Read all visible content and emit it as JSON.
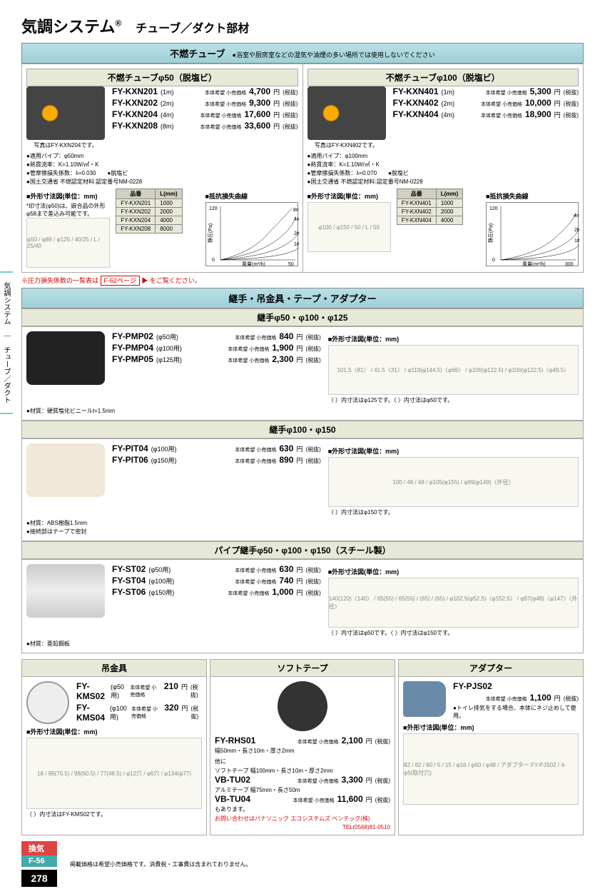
{
  "header": {
    "title": "気調システム",
    "reg": "®",
    "subtitle": "チューブ／ダクト部材"
  },
  "sidebar": {
    "text": "気調システム　｜　チューブ／ダクト部材　｜"
  },
  "section1": {
    "title": "不燃チューブ",
    "warning": "●浴室や厨房室などの湿気や油煙の多い場所では使用しないでください",
    "left": {
      "subtitle": "不燃チューブφ50（脱塩ビ）",
      "caption": "写真はFY-KXN204です。",
      "products": [
        {
          "model": "FY-KXN201",
          "spec": "(1m)",
          "price": "4,700"
        },
        {
          "model": "FY-KXN202",
          "spec": "(2m)",
          "price": "9,300"
        },
        {
          "model": "FY-KXN204",
          "spec": "(4m)",
          "price": "17,600"
        },
        {
          "model": "FY-KXN208",
          "spec": "(8m)",
          "price": "33,600"
        }
      ],
      "bullets": [
        "●適用パイプ：φ50mm",
        "●熱貫流率：K=1.10W/㎡・K",
        "●管摩擦損失係数：λ=0.030　　●脱塩ビ",
        "●国土交通省 不燃認定材料:認定番号NM-0228"
      ],
      "diagram_label": "外形寸法図(単位：mm)",
      "diagram_note": "*印寸法(φ50)は、嵌合品の外形φ58まで差込み可能です。",
      "table": {
        "headers": [
          "品番",
          "L(mm)"
        ],
        "rows": [
          [
            "FY-KXN201",
            "1000"
          ],
          [
            "FY-KXN202",
            "2000"
          ],
          [
            "FY-KXN204",
            "4000"
          ],
          [
            "FY-KXN208",
            "8000"
          ]
        ]
      },
      "chart_label": "抵抗損失曲線",
      "chart": {
        "xlabel": "風量(m³/h)",
        "ylabel": "静圧(Pa)",
        "xlim": [
          0,
          50
        ],
        "ylim": [
          0,
          120
        ],
        "series": [
          "8m",
          "4m",
          "2m",
          "1m"
        ]
      }
    },
    "right": {
      "subtitle": "不燃チューブφ100（脱塩ビ）",
      "caption": "写真はFY-KXN402です。",
      "products": [
        {
          "model": "FY-KXN401",
          "spec": "(1m)",
          "price": "5,300"
        },
        {
          "model": "FY-KXN402",
          "spec": "(2m)",
          "price": "10,000"
        },
        {
          "model": "FY-KXN404",
          "spec": "(4m)",
          "price": "18,900"
        }
      ],
      "bullets": [
        "●適用パイプ：φ100mm",
        "●熱貫流率：K=1.10W/㎡・K",
        "●管摩擦損失係数：λ=0.070　　●脱塩ビ",
        "●国土交通省 不燃認定材料:認定番号NM-0228"
      ],
      "diagram_label": "外形寸法図(単位：mm)",
      "table": {
        "headers": [
          "品番",
          "L(mm)"
        ],
        "rows": [
          [
            "FY-KXN401",
            "1000"
          ],
          [
            "FY-KXN402",
            "2000"
          ],
          [
            "FY-KXN404",
            "4000"
          ]
        ]
      },
      "chart_label": "抵抗損失曲線",
      "chart": {
        "xlabel": "風量(m³/h)",
        "ylabel": "静圧(Pa)",
        "xlim": [
          0,
          300
        ],
        "ylim": [
          0,
          120
        ],
        "series": [
          "4m",
          "2m",
          "1m"
        ]
      }
    }
  },
  "note_loss": {
    "prefix": "※圧力損失係数の一覧表は",
    "box": "F-62ページ",
    "suffix": "をご覧ください。"
  },
  "section2": {
    "title": "継手・吊金具・テープ・アダプター",
    "sub1": {
      "title": "継手φ50・φ100・φ125",
      "products": [
        {
          "model": "FY-PMP02",
          "spec": "(φ50用)",
          "price": "840"
        },
        {
          "model": "FY-PMP04",
          "spec": "(φ100用)",
          "price": "1,900"
        },
        {
          "model": "FY-PMP05",
          "spec": "(φ125用)",
          "price": "2,300"
        }
      ],
      "bullet": "●材質：硬質塩化ビニールt=1.5mm",
      "diagram_label": "外形寸法図(単位：mm)",
      "dims": "101.5〈81〉 / 41.5〈31〉 / φ119(φ144.5)〈φ66〉 / φ100(φ122.5) / φ100(φ122.5)〈φ49.5〉",
      "notes": [
        "（ ）内寸法はφ125です。〈 〉内寸法はφ50です。"
      ]
    },
    "sub2": {
      "title": "継手φ100・φ150",
      "products": [
        {
          "model": "FY-PIT04",
          "spec": "(φ100用)",
          "price": "630"
        },
        {
          "model": "FY-PIT06",
          "spec": "(φ150用)",
          "price": "890"
        }
      ],
      "bullets": [
        "●材質：ABS樹脂1.5mm",
        "●接続部はテープで密封"
      ],
      "diagram_label": "外形寸法図(単位：mm)",
      "dims": "100 / 48 / 48 / φ105(φ155) / φ99(φ149)〈外径〉",
      "note": "（ ）内寸法はφ150です。"
    },
    "sub3": {
      "title": "パイプ継手φ50・φ100・φ150（スチール製）",
      "products": [
        {
          "model": "FY-ST02",
          "spec": "(φ50用)",
          "price": "630"
        },
        {
          "model": "FY-ST04",
          "spec": "(φ100用)",
          "price": "740"
        },
        {
          "model": "FY-ST06",
          "spec": "(φ150用)",
          "price": "1,000"
        }
      ],
      "bullet": "●材質：亜鉛鋼板",
      "diagram_label": "外形寸法図(単位：mm)",
      "dims": "140(120)〈140〉 / 65(55) / 65(55) / (65) / (65) / φ102.5(φ52.5)〈φ152.5〉 / φ97(φ48)〈φ147〉〈外径〉",
      "note": "（ ）内寸法はφ50です。〈 〉内寸法はφ150です。"
    }
  },
  "section3": {
    "col1": {
      "title": "吊金具",
      "products": [
        {
          "model": "FY-KMS02",
          "spec": "(φ50用)",
          "price": "210"
        },
        {
          "model": "FY-KMS04",
          "spec": "(φ100用)",
          "price": "320"
        }
      ],
      "diagram_label": "外形寸法図(単位：mm)",
      "dims": "18 / 99(70.5) / 98(60.5) / 77(48.5) / φ12穴 / φ6穴 / φ134(φ77)",
      "note": "（ ）内寸法はFY-KMS02です。"
    },
    "col2": {
      "title": "ソフトテープ",
      "product1": {
        "model": "FY-RHS01",
        "price": "2,100"
      },
      "spec1": "幅50mm・長さ10m・厚さ2mm",
      "other_label": "他に",
      "other1": "ソフトテープ 幅100mm・長さ10m・厚さ2mm",
      "product2": {
        "model": "VB-TU02",
        "price": "3,300"
      },
      "other2": "アルミテープ 幅75mm・長さ50m",
      "product3": {
        "model": "VB-TU04",
        "price": "11,600"
      },
      "other3": "もあります。",
      "contact": "お問い合わせはパナソニック エコシステムズ ベンテック(株)",
      "tel": "TEL(0568)81-0510"
    },
    "col3": {
      "title": "アダプター",
      "product": {
        "model": "FY-PJS02",
        "price": "1,100"
      },
      "bullet": "●トイレ排気をする場合、本体にネジ止めして使用。",
      "diagram_label": "外形寸法図(単位：mm)",
      "dims": "82 / 82 / 60 / 5 / 15 / φ16 / φ60 / φ48 / アダプター FY-PJS02 / 4-φ5(取付穴)"
    }
  },
  "footer": {
    "tag1": "換気",
    "tag2": "F-56",
    "pagenum": "278",
    "note": "掲載価格は希望小売価格です。消費税・工事費は含まれておりません。"
  },
  "price_label": "本体希望\n小売価格",
  "yen": "円",
  "tax": "(税抜)"
}
